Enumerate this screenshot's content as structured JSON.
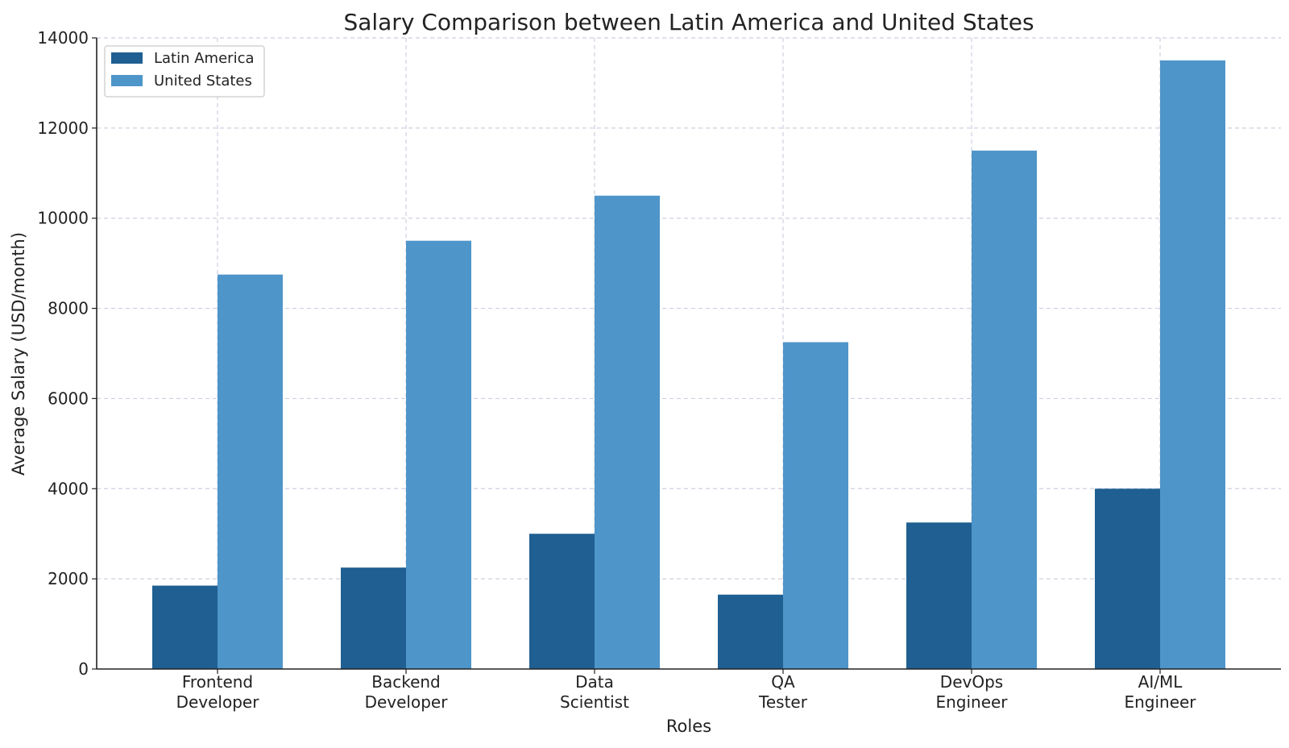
{
  "chart_data": {
    "type": "bar",
    "title": "Salary Comparison between Latin America and United States",
    "xlabel": "Roles",
    "ylabel": "Average Salary (USD/month)",
    "categories": [
      [
        "Frontend",
        "Developer"
      ],
      [
        "Backend",
        "Developer"
      ],
      [
        "Data",
        "Scientist"
      ],
      [
        "QA",
        "Tester"
      ],
      [
        "DevOps",
        "Engineer"
      ],
      [
        "AI/ML",
        "Engineer"
      ]
    ],
    "series": [
      {
        "name": "Latin America",
        "color": "#1f5f91",
        "values": [
          1850,
          2250,
          3000,
          1650,
          3250,
          4000
        ]
      },
      {
        "name": "United States",
        "color": "#4e95c9",
        "values": [
          8750,
          9500,
          10500,
          7250,
          11500,
          13500
        ]
      }
    ],
    "ylim": [
      0,
      14000
    ],
    "yticks": [
      0,
      2000,
      4000,
      6000,
      8000,
      10000,
      12000,
      14000
    ],
    "grid": true,
    "legend_position": "top-left"
  }
}
